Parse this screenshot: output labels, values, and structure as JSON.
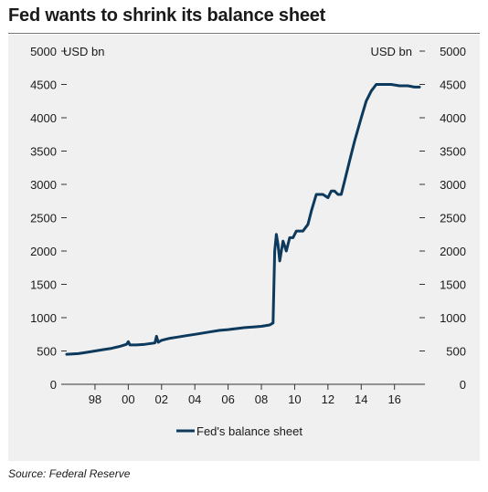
{
  "title": "Fed wants to shrink its balance sheet",
  "source": "Source: Federal Reserve",
  "colors": {
    "line": "#0d3a5c",
    "panel": "#f0f0f0",
    "axis": "#333333"
  },
  "chart_data": {
    "type": "line",
    "title": "Fed wants to shrink its balance sheet",
    "ylabel_left": "USD bn",
    "ylabel_right": "USD bn",
    "ylim": [
      0,
      5000
    ],
    "xlim": [
      1996.3,
      2017.5
    ],
    "y_ticks": [
      0,
      500,
      1000,
      1500,
      2000,
      2500,
      3000,
      3500,
      4000,
      4500,
      5000
    ],
    "y_tick_labels": [
      "0",
      "500",
      "1000",
      "1500",
      "2000",
      "2500",
      "3000",
      "3500",
      "4000",
      "4500",
      "5000"
    ],
    "x_ticks": [
      1998,
      2000,
      2002,
      2004,
      2006,
      2008,
      2010,
      2012,
      2014,
      2016
    ],
    "x_tick_labels": [
      "98",
      "00",
      "02",
      "04",
      "06",
      "08",
      "10",
      "12",
      "14",
      "16"
    ],
    "legend": "bottom-center",
    "grid": false,
    "series": [
      {
        "name": "Fed's balance sheet",
        "x": [
          1996.3,
          1997.0,
          1997.5,
          1998.0,
          1998.5,
          1999.0,
          1999.5,
          1999.9,
          2000.0,
          2000.1,
          2000.5,
          2001.0,
          2001.6,
          2001.7,
          2001.8,
          2002.0,
          2002.5,
          2003.0,
          2003.5,
          2004.0,
          2004.5,
          2005.0,
          2005.5,
          2006.0,
          2006.5,
          2007.0,
          2007.5,
          2008.0,
          2008.5,
          2008.7,
          2008.8,
          2008.9,
          2009.0,
          2009.1,
          2009.2,
          2009.3,
          2009.5,
          2009.7,
          2009.9,
          2010.1,
          2010.3,
          2010.5,
          2010.8,
          2011.0,
          2011.3,
          2011.5,
          2011.7,
          2012.0,
          2012.2,
          2012.4,
          2012.6,
          2012.8,
          2013.0,
          2013.3,
          2013.6,
          2014.0,
          2014.3,
          2014.6,
          2014.9,
          2015.3,
          2015.8,
          2016.3,
          2016.8,
          2017.2,
          2017.5
        ],
        "values": [
          450,
          460,
          480,
          500,
          520,
          540,
          570,
          600,
          640,
          590,
          590,
          600,
          620,
          720,
          630,
          660,
          690,
          710,
          730,
          750,
          770,
          790,
          810,
          820,
          835,
          850,
          860,
          870,
          890,
          920,
          2000,
          2250,
          2100,
          1850,
          2000,
          2150,
          2000,
          2200,
          2200,
          2300,
          2300,
          2300,
          2400,
          2600,
          2850,
          2850,
          2850,
          2800,
          2900,
          2900,
          2850,
          2850,
          3050,
          3350,
          3650,
          4000,
          4250,
          4400,
          4500,
          4500,
          4500,
          4480,
          4480,
          4460,
          4460
        ]
      }
    ]
  }
}
